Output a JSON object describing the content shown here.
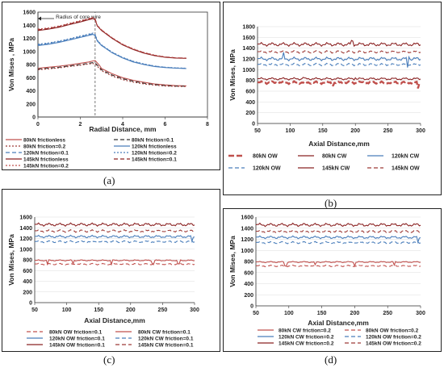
{
  "panels": [
    {
      "label": "(a)"
    },
    {
      "label": "(b)"
    },
    {
      "label": "(c)"
    },
    {
      "label": "(d)"
    }
  ],
  "chart_data": [
    {
      "type": "line",
      "panel": "(a)",
      "xlabel": "Radial Distance, mm",
      "ylabel": "Von Mises , MPa",
      "xlim": [
        0,
        8
      ],
      "ylim": [
        0,
        1600
      ],
      "xticks": [
        0,
        2,
        4,
        6,
        8
      ],
      "yticks": [
        0,
        200,
        400,
        600,
        800,
        1000,
        1200,
        1400,
        1600
      ],
      "annotation": "Radius of core wire",
      "annotation_range": [
        0,
        2.7
      ],
      "legend_placement": "bottom",
      "series": [
        {
          "name": "80kN frictionless",
          "color": "#C0504D",
          "dash": "solid",
          "x": [
            0,
            0.5,
            1,
            1.5,
            2,
            2.4,
            2.6,
            2.7,
            2.9,
            3,
            3.5,
            4,
            4.5,
            5,
            5.5,
            6,
            6.5,
            7
          ],
          "y": [
            745,
            760,
            775,
            795,
            820,
            840,
            855,
            860,
            790,
            740,
            660,
            600,
            560,
            530,
            505,
            490,
            480,
            475
          ]
        },
        {
          "name": "80kN friction=0.1",
          "color": "#333333",
          "dash": "dash",
          "x": [
            0,
            0.5,
            1,
            1.5,
            2,
            2.4,
            2.6,
            2.7,
            2.9,
            3,
            3.5,
            4,
            4.5,
            5,
            5.5,
            6,
            6.5,
            7
          ],
          "y": [
            730,
            745,
            760,
            780,
            800,
            820,
            830,
            825,
            760,
            720,
            640,
            585,
            545,
            515,
            495,
            480,
            472,
            470
          ]
        },
        {
          "name": "80kN friction=0.2",
          "color": "#9E3B37",
          "dash": "dot",
          "x": [
            0,
            0.5,
            1,
            1.5,
            2,
            2.4,
            2.6,
            2.7,
            2.9,
            3,
            3.5,
            4,
            4.5,
            5,
            5.5,
            6,
            6.5,
            7
          ],
          "y": [
            720,
            735,
            750,
            770,
            790,
            808,
            815,
            810,
            740,
            705,
            625,
            570,
            532,
            505,
            486,
            473,
            466,
            465
          ]
        },
        {
          "name": "120kN frictionless",
          "color": "#4A7EBB",
          "dash": "solid",
          "x": [
            0,
            0.5,
            1,
            1.5,
            2,
            2.4,
            2.6,
            2.7,
            2.8,
            3,
            3.5,
            4,
            4.5,
            5,
            5.5,
            6,
            6.5,
            7
          ],
          "y": [
            1090,
            1110,
            1140,
            1175,
            1215,
            1245,
            1260,
            1240,
            1160,
            1090,
            980,
            900,
            840,
            800,
            770,
            755,
            745,
            740
          ]
        },
        {
          "name": "120kN friction=0.1",
          "color": "#4A7EBB",
          "dash": "dash",
          "x": [
            0,
            0.5,
            1,
            1.5,
            2,
            2.4,
            2.6,
            2.7,
            2.8,
            3,
            3.5,
            4,
            4.5,
            5,
            5.5,
            6,
            6.5,
            7
          ],
          "y": [
            1100,
            1120,
            1150,
            1185,
            1225,
            1255,
            1270,
            1250,
            1165,
            1095,
            985,
            905,
            845,
            805,
            775,
            758,
            748,
            742
          ]
        },
        {
          "name": "120kN friction=0.2",
          "color": "#4A7EBB",
          "dash": "dot",
          "x": [
            0,
            0.5,
            1,
            1.5,
            2,
            2.4,
            2.6,
            2.7,
            2.8,
            3,
            3.5,
            4,
            4.5,
            5,
            5.5,
            6,
            6.5,
            7
          ],
          "y": [
            1110,
            1130,
            1160,
            1195,
            1235,
            1265,
            1280,
            1260,
            1170,
            1100,
            990,
            910,
            850,
            810,
            778,
            760,
            750,
            745
          ]
        },
        {
          "name": "145kN frictionless",
          "color": "#8B2323",
          "dash": "solid",
          "x": [
            0,
            0.5,
            1,
            1.5,
            2,
            2.4,
            2.6,
            2.7,
            2.8,
            3,
            3.5,
            4,
            4.5,
            5,
            5.5,
            6,
            6.5,
            7
          ],
          "y": [
            1320,
            1340,
            1370,
            1410,
            1450,
            1485,
            1500,
            1480,
            1390,
            1320,
            1200,
            1100,
            1030,
            975,
            935,
            912,
            900,
            895
          ]
        },
        {
          "name": "145kN friction=0.1",
          "color": "#8B2323",
          "dash": "dash",
          "x": [
            0,
            0.5,
            1,
            1.5,
            2,
            2.4,
            2.6,
            2.7,
            2.8,
            3,
            3.5,
            4,
            4.5,
            5,
            5.5,
            6,
            6.5,
            7
          ],
          "y": [
            1330,
            1350,
            1380,
            1420,
            1460,
            1495,
            1510,
            1490,
            1395,
            1325,
            1205,
            1105,
            1035,
            980,
            940,
            915,
            902,
            897
          ]
        },
        {
          "name": "145kN friction=0.2",
          "color": "#C0504D",
          "dash": "dot",
          "x": [
            0,
            0.5,
            1,
            1.5,
            2,
            2.4,
            2.6,
            2.7,
            2.8,
            3,
            3.5,
            4,
            4.5,
            5,
            5.5,
            6,
            6.5,
            7
          ],
          "y": [
            1340,
            1360,
            1390,
            1430,
            1470,
            1505,
            1520,
            1500,
            1400,
            1330,
            1210,
            1110,
            1040,
            985,
            945,
            918,
            905,
            900
          ]
        }
      ]
    },
    {
      "type": "line",
      "panel": "(b)",
      "xlabel": "Axial Distance,mm",
      "ylabel": "Von Mises, MPa",
      "xlim": [
        50,
        300
      ],
      "ylim": [
        0,
        1800
      ],
      "xticks": [
        50,
        100,
        150,
        200,
        250,
        300
      ],
      "yticks": [
        0,
        200,
        400,
        600,
        800,
        1000,
        1200,
        1400,
        1600,
        1800
      ],
      "legend_placement": "bottom",
      "series": [
        {
          "name": "80kN OW",
          "color": "#C0504D",
          "dash": "longdash",
          "width": 2.4,
          "base": 760,
          "amp": 25,
          "spikes": [
            [
              165,
              -40
            ],
            [
              245,
              -30
            ],
            [
              296,
              -120
            ]
          ]
        },
        {
          "name": "80kN CW",
          "color": "#8B2323",
          "dash": "solid",
          "base": 830,
          "amp": 22,
          "spikes": [
            [
              120,
              30
            ],
            [
              200,
              25
            ]
          ]
        },
        {
          "name": "120kN CW",
          "color": "#4A7EBB",
          "dash": "solid",
          "base": 1200,
          "amp": 35,
          "spikes": [
            [
              90,
              90
            ],
            [
              280,
              -160
            ],
            [
              282,
              60
            ]
          ]
        },
        {
          "name": "120kN OW",
          "color": "#4A7EBB",
          "dash": "dash",
          "base": 1095,
          "amp": 25,
          "spikes": []
        },
        {
          "name": "145kN CW",
          "color": "#8B2323",
          "dash": "solid",
          "base": 1470,
          "amp": 35,
          "spikes": [
            [
              195,
              60
            ]
          ]
        },
        {
          "name": "145kN OW",
          "color": "#9E3B37",
          "dash": "dash",
          "base": 1330,
          "amp": 25,
          "spikes": []
        }
      ]
    },
    {
      "type": "line",
      "panel": "(c)",
      "xlabel": "Axial Distance,mm",
      "ylabel": "Von Mises, MPa",
      "xlim": [
        50,
        300
      ],
      "ylim": [
        0,
        1600
      ],
      "xticks": [
        50,
        100,
        150,
        200,
        250,
        300
      ],
      "yticks": [
        0,
        200,
        400,
        600,
        800,
        1000,
        1200,
        1400,
        1600
      ],
      "legend_placement": "bottom",
      "series": [
        {
          "name": "80kN OW friction=0.1",
          "color": "#C0504D",
          "dash": "dash",
          "base": 720,
          "amp": 15,
          "spikes": []
        },
        {
          "name": "80kN CW friction=0.1",
          "color": "#C0504D",
          "dash": "solid",
          "base": 790,
          "amp": 12,
          "spikes": [
            [
              70,
              -70
            ],
            [
              110,
              -60
            ],
            [
              170,
              -70
            ],
            [
              235,
              -60
            ],
            [
              275,
              -70
            ]
          ]
        },
        {
          "name": "120kN OW friction=0.1",
          "color": "#4A7EBB",
          "dash": "solid",
          "base": 1235,
          "amp": 25,
          "spikes": [
            [
              296,
              -100
            ]
          ]
        },
        {
          "name": "120kN CW friction=0.1",
          "color": "#4A7EBB",
          "dash": "dash",
          "base": 1140,
          "amp": 20,
          "spikes": []
        },
        {
          "name": "145kN OW friction=0.1",
          "color": "#8B2323",
          "dash": "solid",
          "base": 1460,
          "amp": 30,
          "spikes": []
        },
        {
          "name": "145kN CW friction=0.1",
          "color": "#9E3B37",
          "dash": "dash",
          "base": 1340,
          "amp": 25,
          "spikes": []
        }
      ]
    },
    {
      "type": "line",
      "panel": "(d)",
      "xlabel": "Axial Distance,mm",
      "ylabel": "Von Mises, MPa",
      "xlim": [
        50,
        300
      ],
      "ylim": [
        0,
        1600
      ],
      "xticks": [
        50,
        100,
        150,
        200,
        250,
        300
      ],
      "yticks": [
        0,
        200,
        400,
        600,
        800,
        1000,
        1200,
        1400,
        1600
      ],
      "legend_placement": "bottom",
      "series": [
        {
          "name": "80kN CW friction=0.2",
          "color": "#C0504D",
          "dash": "solid",
          "base": 790,
          "amp": 12,
          "spikes": [
            [
              95,
              -70
            ],
            [
              140,
              -60
            ],
            [
              200,
              -70
            ],
            [
              260,
              -60
            ]
          ]
        },
        {
          "name": "80kN OW friction=0.2",
          "color": "#C0504D",
          "dash": "dash",
          "base": 720,
          "amp": 15,
          "spikes": []
        },
        {
          "name": "120kN CW friction=0.2",
          "color": "#4A7EBB",
          "dash": "solid",
          "base": 1235,
          "amp": 25,
          "spikes": [
            [
              296,
              -100
            ]
          ]
        },
        {
          "name": "120kN OW friction=0.2",
          "color": "#4A7EBB",
          "dash": "dash",
          "base": 1140,
          "amp": 20,
          "spikes": []
        },
        {
          "name": "145kN CW friction=0.2",
          "color": "#8B2323",
          "dash": "solid",
          "base": 1460,
          "amp": 30,
          "spikes": []
        },
        {
          "name": "145kN OW friction=0.2",
          "color": "#9E3B37",
          "dash": "dash",
          "base": 1340,
          "amp": 25,
          "spikes": []
        }
      ]
    }
  ]
}
